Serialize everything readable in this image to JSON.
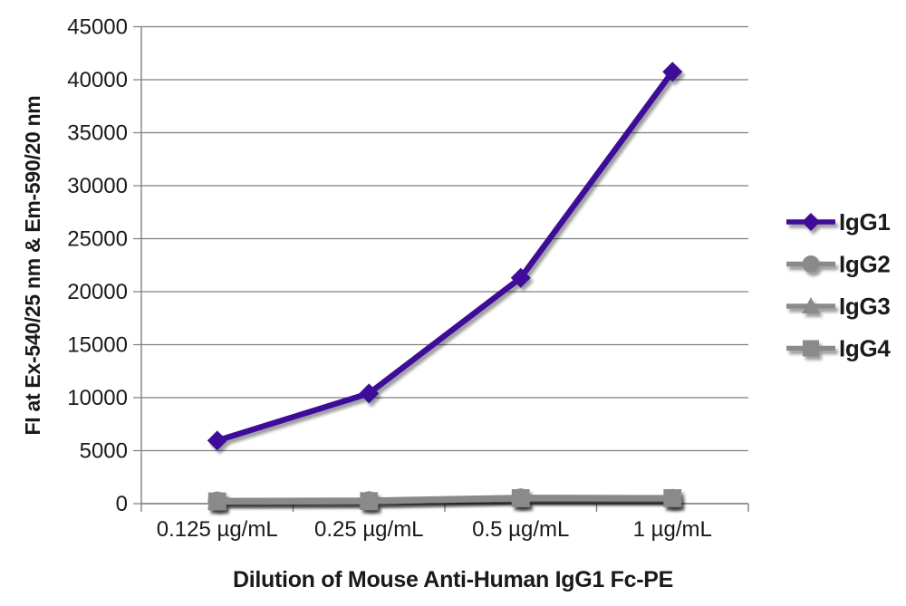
{
  "chart_data": {
    "type": "line",
    "title": "",
    "xlabel": "Dilution of Mouse Anti-Human IgG1 Fc-PE",
    "ylabel": "FI at Ex-540/25 nm & Em-590/20 nm",
    "categories": [
      "0.125 µg/mL",
      "0.25 µg/mL",
      "0.5 µg/mL",
      "1 µg/mL"
    ],
    "yticks": [
      0,
      5000,
      10000,
      15000,
      20000,
      25000,
      30000,
      35000,
      40000,
      45000
    ],
    "ylim": [
      0,
      45000
    ],
    "grid": true,
    "legend_position": "right",
    "series": [
      {
        "name": "IgG1",
        "marker": "diamond",
        "color": "#3E0D99",
        "values": [
          5950,
          10400,
          21300,
          40750
        ]
      },
      {
        "name": "IgG2",
        "marker": "circle",
        "color": "#8A8A8A",
        "values": [
          250,
          280,
          550,
          500
        ]
      },
      {
        "name": "IgG3",
        "marker": "triangle",
        "color": "#8A8A8A",
        "values": [
          230,
          260,
          480,
          470
        ]
      },
      {
        "name": "IgG4",
        "marker": "square",
        "color": "#8A8A8A",
        "values": [
          210,
          240,
          520,
          520
        ]
      }
    ],
    "colors": {
      "grid": "#7f7f7f",
      "text": "#1a1a1a",
      "background": "#ffffff"
    }
  }
}
